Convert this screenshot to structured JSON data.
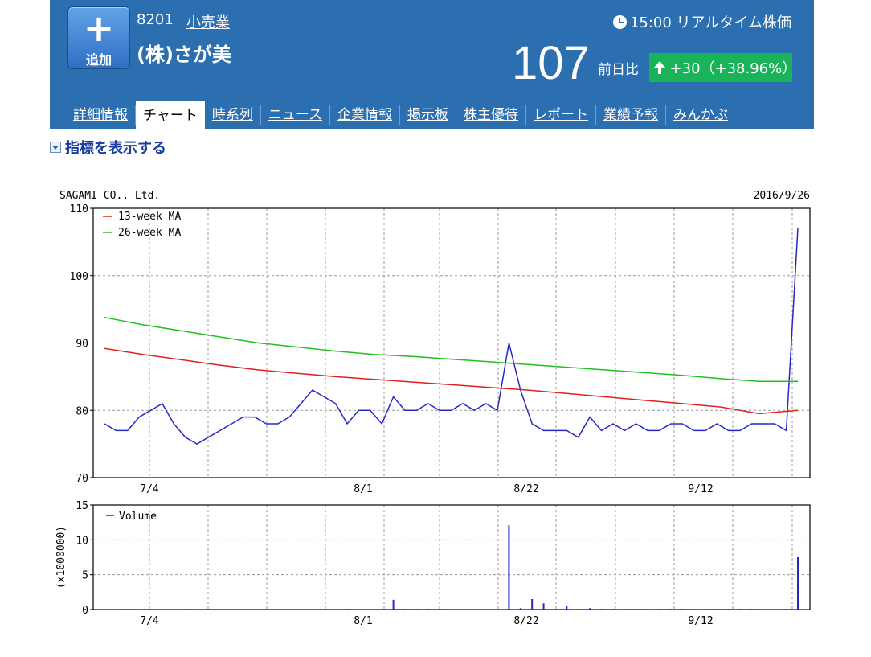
{
  "header": {
    "add_label": "追加",
    "code": "8201",
    "industry": "小売業",
    "company": "(株)さが美",
    "realtime_label": "15:00 リアルタイム株価",
    "price": "107",
    "prev_label": "前日比",
    "change": "+30（+38.96%）"
  },
  "tabs": [
    "詳細情報",
    "チャート",
    "時系列",
    "ニュース",
    "企業情報",
    "掲示板",
    "株主優待",
    "レポート",
    "業績予報",
    "みんかぶ"
  ],
  "active_tab": "チャート",
  "indicator_toggle": "指標を表示する",
  "colors": {
    "header_bg": "#2b6fb1",
    "up_badge": "#19b35a",
    "price_line": "#2828c8",
    "ma13": "#e02020",
    "ma26": "#20c020"
  },
  "chart_data": [
    {
      "type": "line",
      "title": "SAGAMI CO., Ltd.",
      "date_label": "2016/9/26",
      "ylim": [
        70,
        110
      ],
      "yticks": [
        70,
        80,
        90,
        100,
        110
      ],
      "xticks": [
        "7/4",
        "8/1",
        "8/22",
        "9/12"
      ],
      "legend_position": "top-left",
      "grid": true,
      "series": [
        {
          "name": "",
          "color": "#2828c8",
          "values": [
            78,
            77,
            77,
            79,
            80,
            81,
            78,
            76,
            75,
            76,
            77,
            78,
            79,
            79,
            78,
            78,
            79,
            81,
            83,
            82,
            81,
            78,
            80,
            80,
            78,
            82,
            80,
            80,
            81,
            80,
            80,
            81,
            80,
            81,
            80,
            90,
            83,
            78,
            77,
            77,
            77,
            76,
            79,
            77,
            78,
            77,
            78,
            77,
            77,
            78,
            78,
            77,
            77,
            78,
            77,
            77,
            78,
            78,
            78,
            77,
            107
          ]
        },
        {
          "name": "13-week MA",
          "color": "#e02020",
          "values": [
            89.2,
            88.3,
            87.5,
            86.7,
            86.0,
            85.5,
            85.0,
            84.6,
            84.2,
            83.8,
            83.4,
            83.0,
            82.5,
            82.0,
            81.5,
            81.0,
            80.5,
            79.5,
            80.0
          ]
        },
        {
          "name": "26-week MA",
          "color": "#20c020",
          "values": [
            93.8,
            92.7,
            91.8,
            90.9,
            90.0,
            89.4,
            88.8,
            88.3,
            88.0,
            87.6,
            87.2,
            86.8,
            86.4,
            86.0,
            85.6,
            85.2,
            84.7,
            84.3,
            84.3
          ]
        }
      ]
    },
    {
      "type": "bar",
      "ylabel": "(x1000000)",
      "ylim": [
        0,
        15
      ],
      "yticks": [
        0,
        5,
        10,
        15
      ],
      "xticks": [
        "7/4",
        "8/1",
        "8/22",
        "9/12"
      ],
      "legend_position": "top-left",
      "grid": true,
      "series": [
        {
          "name": "Volume",
          "color": "#2828c8",
          "values": [
            0,
            0,
            0.1,
            0,
            0,
            0,
            0,
            0.1,
            0,
            0,
            0,
            0,
            0,
            0,
            0,
            0,
            0,
            0,
            0,
            0,
            0,
            0.1,
            0,
            0,
            0,
            1.4,
            0.1,
            0.1,
            0.1,
            0.1,
            0,
            0,
            0,
            0,
            0,
            12.1,
            0.2,
            1.5,
            0.9,
            0.1,
            0.5,
            0.1,
            0.2,
            0.1,
            0.1,
            0.1,
            0.1,
            0.1,
            0.1,
            0.1,
            0.1,
            0.1,
            0.1,
            0.1,
            0.1,
            0.1,
            0.1,
            0,
            0,
            0.1,
            7.5
          ]
        }
      ]
    }
  ]
}
